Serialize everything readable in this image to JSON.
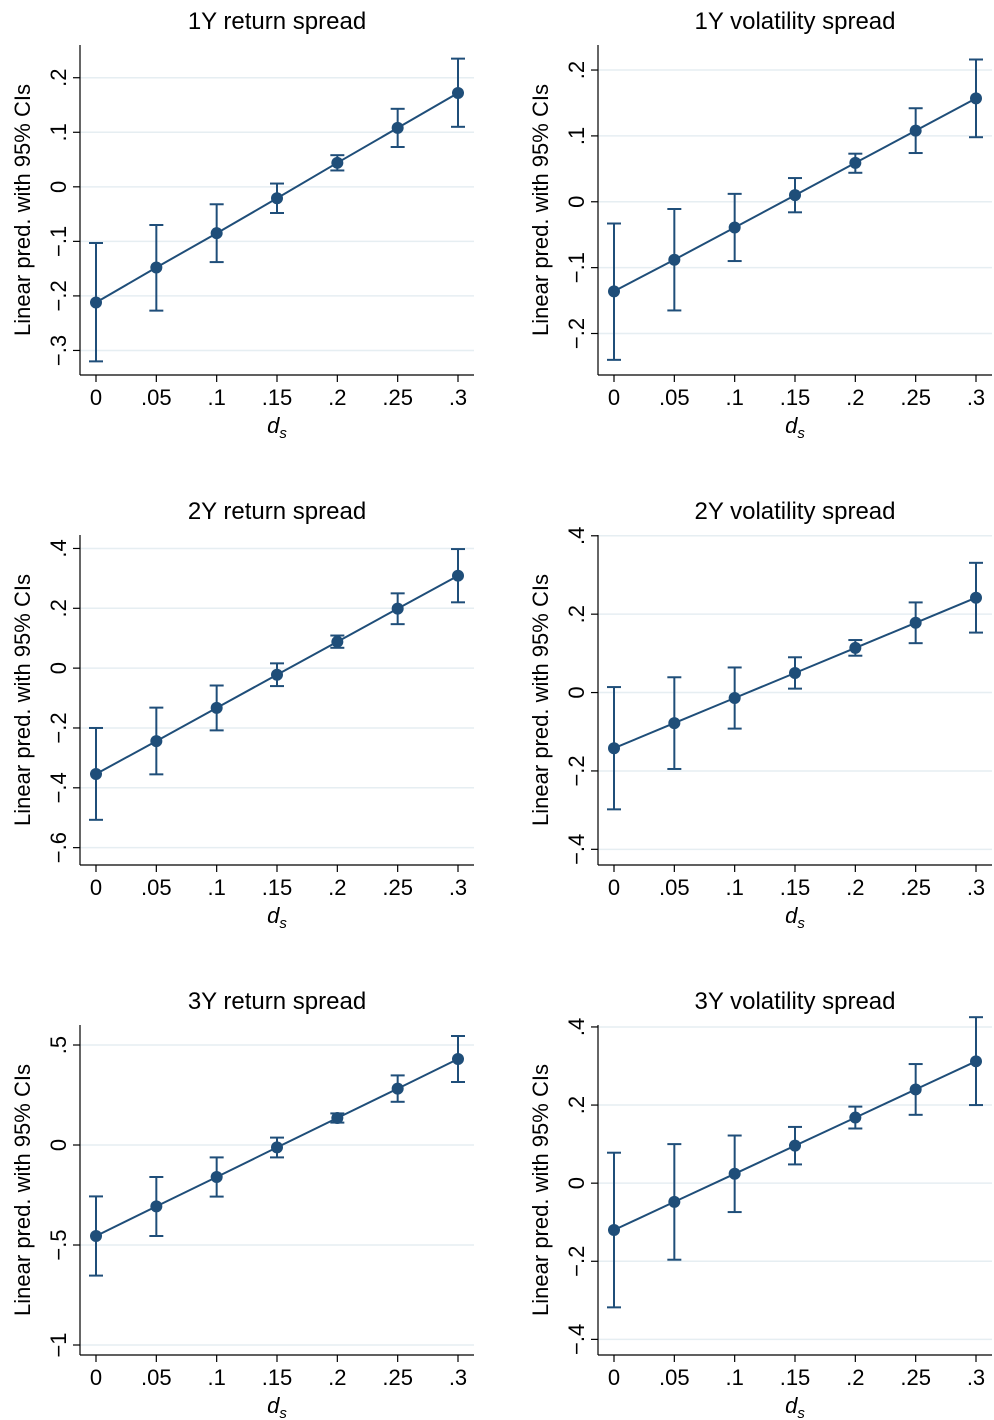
{
  "figure": {
    "background": "#ffffff",
    "series_color": "#1f4e79",
    "grid_color": "#e6eef2"
  },
  "chart_data": [
    {
      "type": "line",
      "title": "1Y return spread",
      "xlabel_main": "d",
      "xlabel_sub": "s",
      "ylabel": "Linear pred. with 95% CIs",
      "x": [
        0,
        0.05,
        0.1,
        0.15,
        0.2,
        0.25,
        0.3
      ],
      "xtick_labels": [
        "0",
        ".05",
        ".1",
        ".15",
        ".2",
        ".25",
        ".3"
      ],
      "y": [
        -0.212,
        -0.148,
        -0.085,
        -0.021,
        0.044,
        0.108,
        0.172
      ],
      "ci_low": [
        -0.32,
        -0.227,
        -0.138,
        -0.048,
        0.03,
        0.073,
        0.11
      ],
      "ci_high": [
        -0.103,
        -0.07,
        -0.032,
        0.006,
        0.058,
        0.143,
        0.235
      ],
      "yticks": [
        -0.3,
        -0.2,
        -0.1,
        0,
        0.1,
        0.2
      ],
      "ytick_labels": [
        "−.3",
        "−.2",
        "−.1",
        "0",
        ".1",
        ".2"
      ],
      "xlim": [
        0,
        0.3
      ],
      "ylim": [
        -0.345,
        0.26
      ],
      "grid": true,
      "legend": "none"
    },
    {
      "type": "line",
      "title": "1Y volatility spread",
      "xlabel_main": "d",
      "xlabel_sub": "s",
      "ylabel": "Linear pred. with 95% CIs",
      "x": [
        0,
        0.05,
        0.1,
        0.15,
        0.2,
        0.25,
        0.3
      ],
      "xtick_labels": [
        "0",
        ".05",
        ".1",
        ".15",
        ".2",
        ".25",
        ".3"
      ],
      "y": [
        -0.136,
        -0.088,
        -0.039,
        0.01,
        0.059,
        0.108,
        0.157
      ],
      "ci_low": [
        -0.24,
        -0.165,
        -0.09,
        -0.016,
        0.044,
        0.074,
        0.098
      ],
      "ci_high": [
        -0.033,
        -0.011,
        0.012,
        0.036,
        0.073,
        0.142,
        0.216
      ],
      "yticks": [
        -0.2,
        -0.1,
        0,
        0.1,
        0.2
      ],
      "ytick_labels": [
        "−.2",
        "−.1",
        "0",
        ".1",
        ".2"
      ],
      "xlim": [
        0,
        0.3
      ],
      "ylim": [
        -0.263,
        0.238
      ],
      "grid": true,
      "legend": "none"
    },
    {
      "type": "line",
      "title": "2Y return spread",
      "xlabel_main": "d",
      "xlabel_sub": "s",
      "ylabel": "Linear pred. with 95% CIs",
      "x": [
        0,
        0.05,
        0.1,
        0.15,
        0.2,
        0.25,
        0.3
      ],
      "xtick_labels": [
        "0",
        ".05",
        ".1",
        ".15",
        ".2",
        ".25",
        ".3"
      ],
      "y": [
        -0.354,
        -0.244,
        -0.133,
        -0.022,
        0.088,
        0.199,
        0.309
      ],
      "ci_low": [
        -0.507,
        -0.355,
        -0.208,
        -0.06,
        0.068,
        0.147,
        0.22
      ],
      "ci_high": [
        -0.2,
        -0.132,
        -0.058,
        0.016,
        0.109,
        0.25,
        0.398
      ],
      "yticks": [
        -0.6,
        -0.4,
        -0.2,
        0,
        0.2,
        0.4
      ],
      "ytick_labels": [
        "−.6",
        "−.4",
        "−.2",
        "0",
        ".2",
        ".4"
      ],
      "xlim": [
        0,
        0.3
      ],
      "ylim": [
        -0.658,
        0.445
      ],
      "grid": true,
      "legend": "none"
    },
    {
      "type": "line",
      "title": "2Y volatility spread",
      "xlabel_main": "d",
      "xlabel_sub": "s",
      "ylabel": "Linear pred. with 95% CIs",
      "x": [
        0,
        0.05,
        0.1,
        0.15,
        0.2,
        0.25,
        0.3
      ],
      "xtick_labels": [
        "0",
        ".05",
        ".1",
        ".15",
        ".2",
        ".25",
        ".3"
      ],
      "y": [
        -0.142,
        -0.078,
        -0.014,
        0.05,
        0.114,
        0.178,
        0.242
      ],
      "ci_low": [
        -0.298,
        -0.195,
        -0.092,
        0.01,
        0.094,
        0.126,
        0.153
      ],
      "ci_high": [
        0.014,
        0.039,
        0.064,
        0.09,
        0.134,
        0.23,
        0.331
      ],
      "yticks": [
        -0.4,
        -0.2,
        0,
        0.2,
        0.4
      ],
      "ytick_labels": [
        "−.4",
        "−.2",
        "0",
        ".2",
        ".4"
      ],
      "xlim": [
        0,
        0.3
      ],
      "ylim": [
        -0.44,
        0.402
      ],
      "grid": true,
      "legend": "none"
    },
    {
      "type": "line",
      "title": "3Y return spread",
      "xlabel_main": "d",
      "xlabel_sub": "s",
      "ylabel": "Linear pred. with 95% CIs",
      "x": [
        0,
        0.05,
        0.1,
        0.15,
        0.2,
        0.25,
        0.3
      ],
      "xtick_labels": [
        "0",
        ".05",
        ".1",
        ".15",
        ".2",
        ".25",
        ".3"
      ],
      "y": [
        -0.455,
        -0.307,
        -0.16,
        -0.012,
        0.135,
        0.282,
        0.43
      ],
      "ci_low": [
        -0.653,
        -0.455,
        -0.258,
        -0.062,
        0.112,
        0.216,
        0.315
      ],
      "ci_high": [
        -0.257,
        -0.16,
        -0.062,
        0.037,
        0.158,
        0.348,
        0.545
      ],
      "yticks": [
        -1,
        -0.5,
        0,
        0.5
      ],
      "ytick_labels": [
        "−1",
        "−.5",
        "0",
        ".5"
      ],
      "xlim": [
        0,
        0.3
      ],
      "ylim": [
        -1.05,
        0.6
      ],
      "grid": true,
      "legend": "none"
    },
    {
      "type": "line",
      "title": "3Y volatility spread",
      "xlabel_main": "d",
      "xlabel_sub": "s",
      "ylabel": "Linear pred. with 95% CIs",
      "x": [
        0,
        0.05,
        0.1,
        0.15,
        0.2,
        0.25,
        0.3
      ],
      "xtick_labels": [
        "0",
        ".05",
        ".1",
        ".15",
        ".2",
        ".25",
        ".3"
      ],
      "y": [
        -0.12,
        -0.048,
        0.024,
        0.096,
        0.168,
        0.24,
        0.312
      ],
      "ci_low": [
        -0.318,
        -0.196,
        -0.074,
        0.048,
        0.14,
        0.175,
        0.2
      ],
      "ci_high": [
        0.078,
        0.1,
        0.122,
        0.144,
        0.196,
        0.305,
        0.425
      ],
      "yticks": [
        -0.4,
        -0.2,
        0,
        0.2,
        0.4
      ],
      "ytick_labels": [
        "−.4",
        "−.2",
        "0",
        ".2",
        ".4"
      ],
      "xlim": [
        0,
        0.3
      ],
      "ylim": [
        -0.44,
        0.405
      ],
      "grid": true,
      "legend": "none"
    }
  ]
}
